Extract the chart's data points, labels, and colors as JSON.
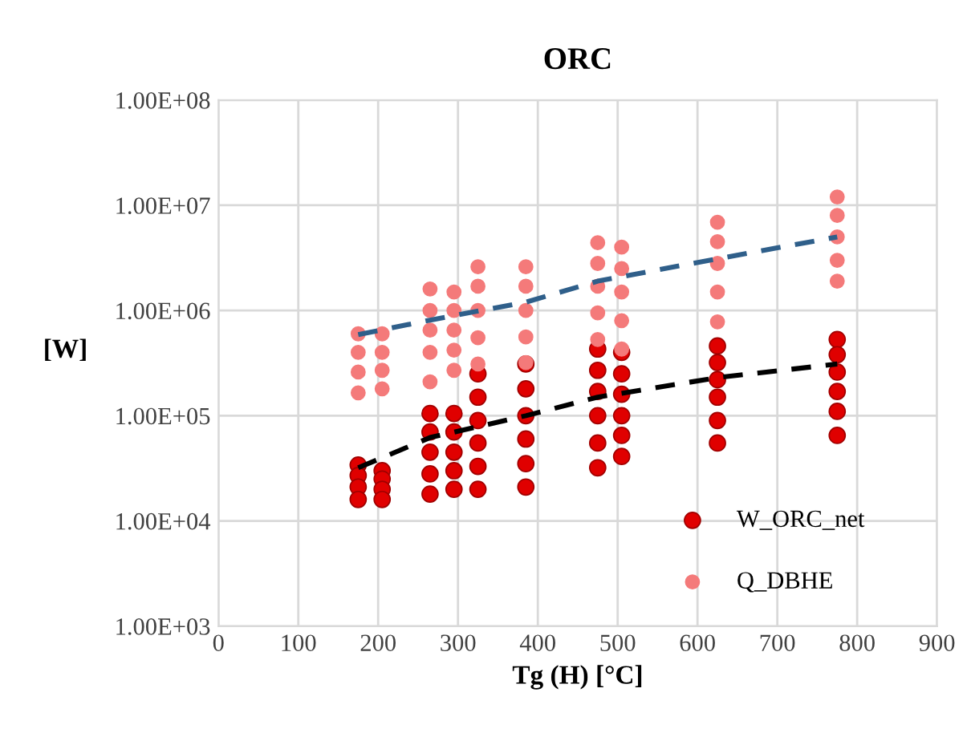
{
  "chart_data": {
    "type": "scatter",
    "title": "ORC",
    "xlabel": "Tg (H) [°C]",
    "ylabel": "[W]",
    "log": "y",
    "grid": true,
    "legend": "lower right",
    "marker": "circle",
    "xlim": [
      0,
      900
    ],
    "xticks": [
      0,
      100,
      200,
      300,
      400,
      500,
      600,
      700,
      800,
      900
    ],
    "ylim": [
      1000,
      100000000
    ],
    "yticks": [
      {
        "value": 1000,
        "label": "1.00E+03"
      },
      {
        "value": 10000,
        "label": "1.00E+04"
      },
      {
        "value": 100000,
        "label": "1.00E+05"
      },
      {
        "value": 1000000,
        "label": "1.00E+06"
      },
      {
        "value": 10000000,
        "label": "1.00E+07"
      },
      {
        "value": 100000000,
        "label": "1.00E+08"
      }
    ],
    "series": [
      {
        "name": "W_ORC_net",
        "color": "#e00000",
        "x": [
          175,
          175,
          175,
          175,
          205,
          205,
          205,
          205,
          265,
          265,
          265,
          265,
          265,
          295,
          295,
          295,
          295,
          295,
          325,
          325,
          325,
          325,
          325,
          325,
          385,
          385,
          385,
          385,
          385,
          385,
          475,
          475,
          475,
          475,
          475,
          475,
          505,
          505,
          505,
          505,
          505,
          505,
          625,
          625,
          625,
          625,
          625,
          625,
          775,
          775,
          775,
          775,
          775,
          775
        ],
        "values": [
          34000,
          27000,
          21000,
          16000,
          30000,
          25000,
          20000,
          16000,
          105000,
          70000,
          45000,
          28000,
          18000,
          105000,
          70000,
          45000,
          30000,
          20000,
          250000,
          150000,
          90000,
          55000,
          33000,
          20000,
          310000,
          180000,
          100000,
          60000,
          35000,
          21000,
          430000,
          270000,
          170000,
          100000,
          55000,
          32000,
          400000,
          250000,
          160000,
          100000,
          65000,
          41000,
          460000,
          320000,
          220000,
          150000,
          90000,
          55000,
          530000,
          380000,
          260000,
          170000,
          110000,
          65000
        ]
      },
      {
        "name": "Q_DBHE",
        "color": "#f47a7a",
        "x": [
          175,
          175,
          175,
          175,
          205,
          205,
          205,
          205,
          265,
          265,
          265,
          265,
          265,
          295,
          295,
          295,
          295,
          295,
          325,
          325,
          325,
          325,
          325,
          385,
          385,
          385,
          385,
          385,
          475,
          475,
          475,
          475,
          475,
          505,
          505,
          505,
          505,
          505,
          625,
          625,
          625,
          625,
          625,
          775,
          775,
          775,
          775,
          775
        ],
        "values": [
          600000,
          400000,
          260000,
          165000,
          600000,
          400000,
          270000,
          180000,
          1600000,
          1000000,
          650000,
          400000,
          210000,
          1500000,
          1000000,
          650000,
          420000,
          270000,
          2600000,
          1700000,
          1000000,
          550000,
          310000,
          2600000,
          1700000,
          1000000,
          560000,
          320000,
          4400000,
          2800000,
          1700000,
          950000,
          530000,
          4000000,
          2500000,
          1500000,
          800000,
          430000,
          6900000,
          4500000,
          2800000,
          1500000,
          780000,
          12000000,
          8000000,
          5000000,
          3000000,
          1900000
        ]
      },
      {
        "type": "line",
        "color": "#2f5f8a",
        "line_style": "dashed",
        "marker": "none",
        "x": [
          175,
          265,
          385,
          475,
          625,
          775
        ],
        "values": [
          590000,
          810000,
          1200000,
          1900000,
          3100000,
          5000000
        ]
      },
      {
        "type": "line",
        "color": "#000000",
        "line_style": "dashed",
        "marker": "none",
        "x": [
          175,
          265,
          385,
          475,
          625,
          775
        ],
        "values": [
          32000,
          62000,
          100000,
          150000,
          230000,
          310000
        ]
      }
    ]
  }
}
